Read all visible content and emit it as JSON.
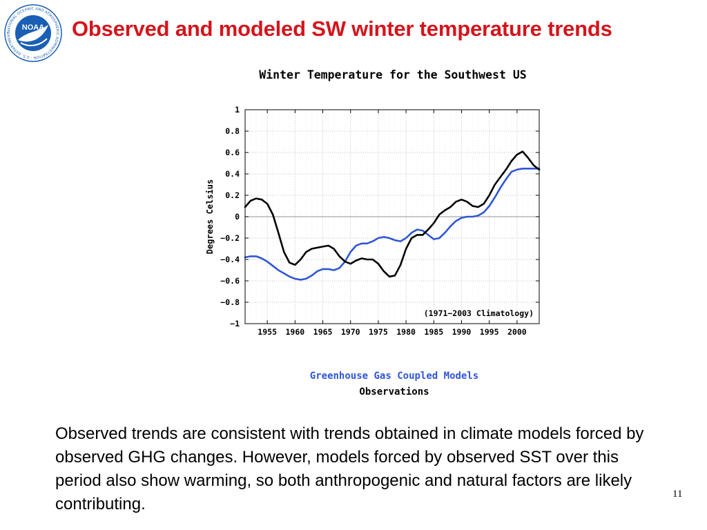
{
  "slide": {
    "title": "Observed and modeled SW winter temperature trends",
    "body": "Observed trends are consistent with trends obtained in climate models forced by observed GHG changes. However, models forced by observed SST over this period also show warming, so both anthropogenic and natural factors are likely contributing.",
    "page_number": "11",
    "logo_text": "NOAA",
    "logo_ring_text": "NATIONAL OCEANIC AND ATMOSPHERIC ADMINISTRATION · U.S. DEPARTMENT OF COMMERCE"
  },
  "colors": {
    "title": "#d4141c",
    "models": "#2f55d4",
    "observations": "#000000",
    "grid": "#c0c0c0",
    "logo_blue": "#1a5fb4"
  },
  "chart_data": {
    "type": "line",
    "title": "Winter Temperature for the Southwest US",
    "xlabel": "",
    "ylabel": "Degrees Celsius",
    "annotation": "(1971−2003 Climatology)",
    "xlim": [
      1951,
      2004
    ],
    "ylim": [
      -1,
      1
    ],
    "grid": true,
    "legend_position": "below",
    "x_ticks": [
      1955,
      1960,
      1965,
      1970,
      1975,
      1980,
      1985,
      1990,
      1995,
      2000
    ],
    "x_tick_labels": [
      "1955",
      "1960",
      "1965",
      "1970",
      "1975",
      "1980",
      "1985",
      "1990",
      "1995",
      "2000"
    ],
    "y_ticks": [
      1,
      0.8,
      0.6,
      0.4,
      0.2,
      0,
      -0.2,
      -0.4,
      -0.6,
      -0.8,
      -1
    ],
    "y_tick_labels": [
      "1",
      "0.8",
      "0.6",
      "0.4",
      "0.2",
      "0",
      "−0.2",
      "−0.4",
      "−0.6",
      "−0.8",
      "−1"
    ],
    "series": [
      {
        "name": "Greenhouse Gas Coupled Models",
        "color": "#2f55d4",
        "x": [
          1951,
          1952,
          1953,
          1954,
          1955,
          1956,
          1957,
          1958,
          1959,
          1960,
          1961,
          1962,
          1963,
          1964,
          1965,
          1966,
          1967,
          1968,
          1969,
          1970,
          1971,
          1972,
          1973,
          1974,
          1975,
          1976,
          1977,
          1978,
          1979,
          1980,
          1981,
          1982,
          1983,
          1984,
          1985,
          1986,
          1987,
          1988,
          1989,
          1990,
          1991,
          1992,
          1993,
          1994,
          1995,
          1996,
          1997,
          1998,
          1999,
          2000,
          2001,
          2002,
          2003,
          2004
        ],
        "y": [
          -0.38,
          -0.37,
          -0.37,
          -0.39,
          -0.42,
          -0.46,
          -0.5,
          -0.53,
          -0.56,
          -0.58,
          -0.59,
          -0.58,
          -0.55,
          -0.51,
          -0.49,
          -0.49,
          -0.5,
          -0.48,
          -0.42,
          -0.33,
          -0.27,
          -0.25,
          -0.25,
          -0.23,
          -0.2,
          -0.19,
          -0.2,
          -0.22,
          -0.23,
          -0.2,
          -0.15,
          -0.12,
          -0.13,
          -0.17,
          -0.21,
          -0.2,
          -0.15,
          -0.09,
          -0.04,
          -0.01,
          0.0,
          0.0,
          0.01,
          0.04,
          0.1,
          0.18,
          0.27,
          0.35,
          0.42,
          0.44,
          0.45,
          0.45,
          0.45,
          0.45
        ]
      },
      {
        "name": "Observations",
        "color": "#000000",
        "x": [
          1951,
          1952,
          1953,
          1954,
          1955,
          1956,
          1957,
          1958,
          1959,
          1960,
          1961,
          1962,
          1963,
          1964,
          1965,
          1966,
          1967,
          1968,
          1969,
          1970,
          1971,
          1972,
          1973,
          1974,
          1975,
          1976,
          1977,
          1978,
          1979,
          1980,
          1981,
          1982,
          1983,
          1984,
          1985,
          1986,
          1987,
          1988,
          1989,
          1990,
          1991,
          1992,
          1993,
          1994,
          1995,
          1996,
          1997,
          1998,
          1999,
          2000,
          2001,
          2002,
          2003,
          2004
        ],
        "y": [
          0.09,
          0.15,
          0.17,
          0.16,
          0.12,
          0.02,
          -0.15,
          -0.33,
          -0.43,
          -0.45,
          -0.4,
          -0.33,
          -0.3,
          -0.29,
          -0.28,
          -0.27,
          -0.3,
          -0.37,
          -0.42,
          -0.44,
          -0.41,
          -0.39,
          -0.4,
          -0.4,
          -0.44,
          -0.51,
          -0.56,
          -0.55,
          -0.45,
          -0.3,
          -0.2,
          -0.17,
          -0.17,
          -0.12,
          -0.06,
          0.02,
          0.06,
          0.09,
          0.14,
          0.16,
          0.14,
          0.1,
          0.09,
          0.12,
          0.2,
          0.3,
          0.37,
          0.44,
          0.52,
          0.58,
          0.61,
          0.55,
          0.48,
          0.44
        ]
      }
    ]
  }
}
